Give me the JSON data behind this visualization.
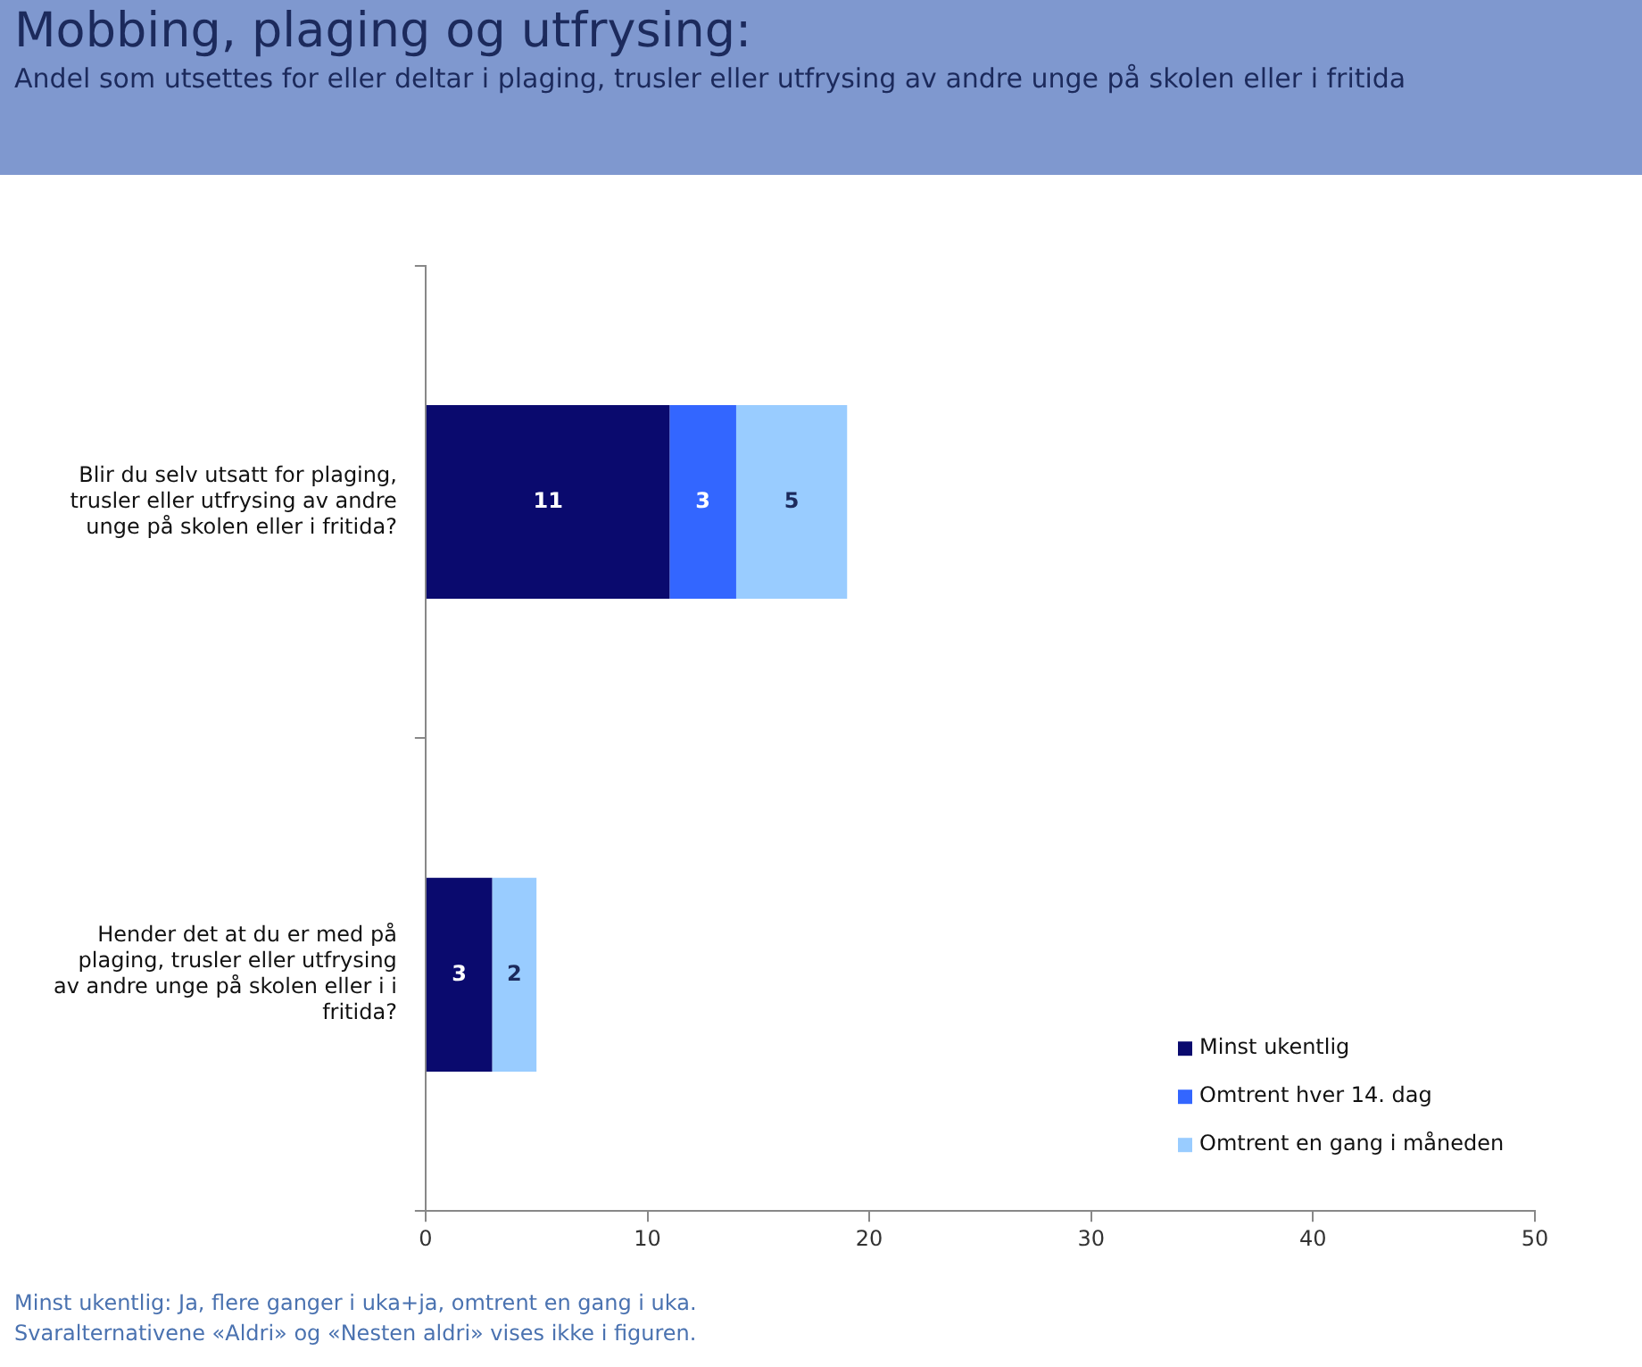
{
  "chart_data": {
    "type": "bar",
    "orientation": "horizontal",
    "stacked": true,
    "title": "Mobbing, plaging og utfrysing:",
    "subtitle": "Andel som utsettes for eller deltar i plaging, trusler eller utfrysing av andre unge på skolen eller i fritida",
    "categories": [
      "Blir du selv utsatt for plaging, trusler eller utfrysing av andre unge på skolen eller i fritida?",
      "Hender det at du er med på plaging, trusler eller utfrysing av andre unge på skolen eller i i fritida?"
    ],
    "series": [
      {
        "name": "Minst ukentlig",
        "color": "#0a0a6e",
        "values": [
          11,
          3
        ],
        "value_labels": [
          "11",
          "3"
        ]
      },
      {
        "name": "Omtrent hver 14. dag",
        "color": "#3366ff",
        "values": [
          3,
          0
        ],
        "value_labels": [
          "3",
          null
        ]
      },
      {
        "name": "Omtrent en gang i måneden",
        "color": "#99ccff",
        "values": [
          5,
          2
        ],
        "value_labels": [
          "5",
          "2"
        ]
      }
    ],
    "xlim": [
      0,
      50
    ],
    "xticks": [
      0,
      10,
      20,
      30,
      40,
      50
    ],
    "legend": "bottom right",
    "annotations": [
      "Minst ukentlig: Ja, flere ganger i uka+ja, omtrent en gang i uka.",
      "Svaralternativene «Aldri» og «Nesten aldri» vises ikke i figuren."
    ]
  }
}
